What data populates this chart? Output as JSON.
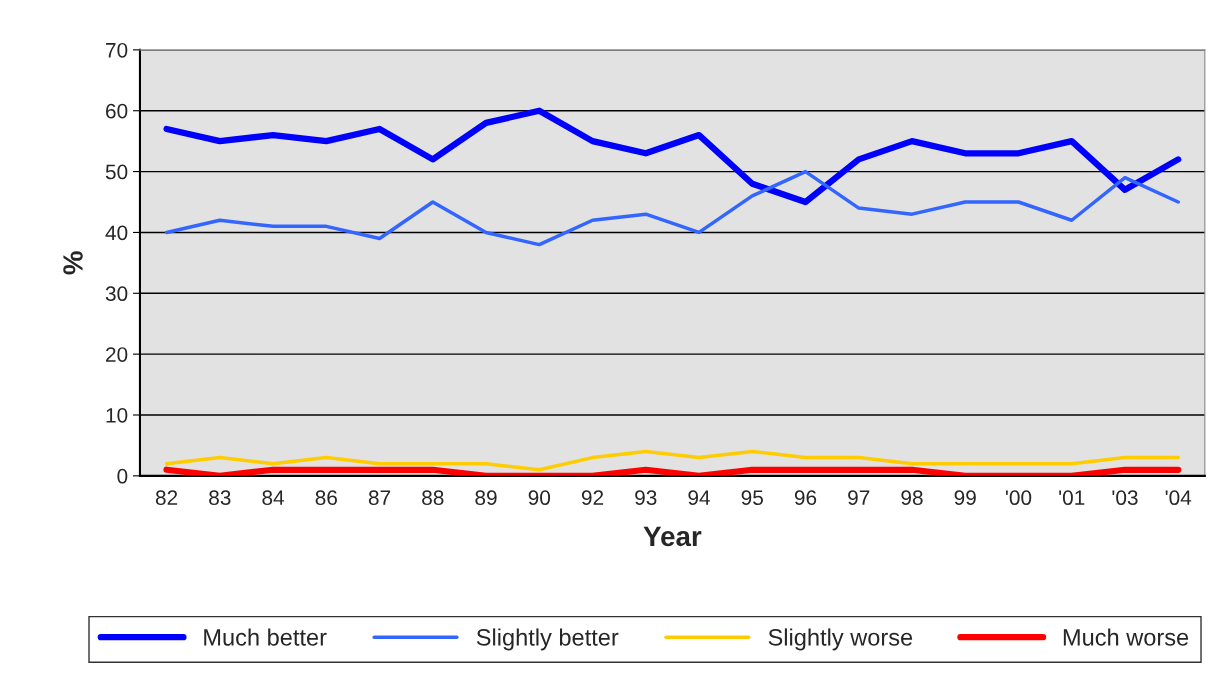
{
  "chart_data": {
    "type": "line",
    "xlabel": "Year",
    "ylabel": "%",
    "categories": [
      "82",
      "83",
      "84",
      "86",
      "87",
      "88",
      "89",
      "90",
      "92",
      "93",
      "94",
      "95",
      "96",
      "97",
      "98",
      "99",
      "'00",
      "'01",
      "'03",
      "'04"
    ],
    "series": [
      {
        "name": "Much better",
        "color": "#0000ff",
        "values": [
          57,
          55,
          56,
          55,
          57,
          52,
          58,
          60,
          55,
          53,
          56,
          48,
          45,
          52,
          55,
          53,
          53,
          55,
          47,
          52
        ]
      },
      {
        "name": "Slightly better",
        "color": "#3366ff",
        "values": [
          40,
          42,
          41,
          41,
          39,
          45,
          40,
          38,
          42,
          43,
          40,
          46,
          50,
          44,
          43,
          45,
          45,
          42,
          49,
          45
        ]
      },
      {
        "name": "Slightly worse",
        "color": "#ffcc00",
        "values": [
          2,
          3,
          2,
          3,
          2,
          2,
          2,
          1,
          3,
          4,
          3,
          4,
          3,
          3,
          2,
          2,
          2,
          2,
          3,
          3
        ]
      },
      {
        "name": "Much worse",
        "color": "#ff0000",
        "values": [
          1,
          0,
          1,
          1,
          1,
          1,
          0,
          0,
          0,
          1,
          0,
          1,
          1,
          1,
          1,
          0,
          0,
          0,
          1,
          1
        ]
      }
    ],
    "ylim": [
      0,
      70
    ],
    "yticks": [
      0,
      10,
      20,
      30,
      40,
      50,
      60,
      70
    ],
    "grid": "y",
    "legend": "bottom",
    "marker": "none",
    "line_style": "solid"
  }
}
